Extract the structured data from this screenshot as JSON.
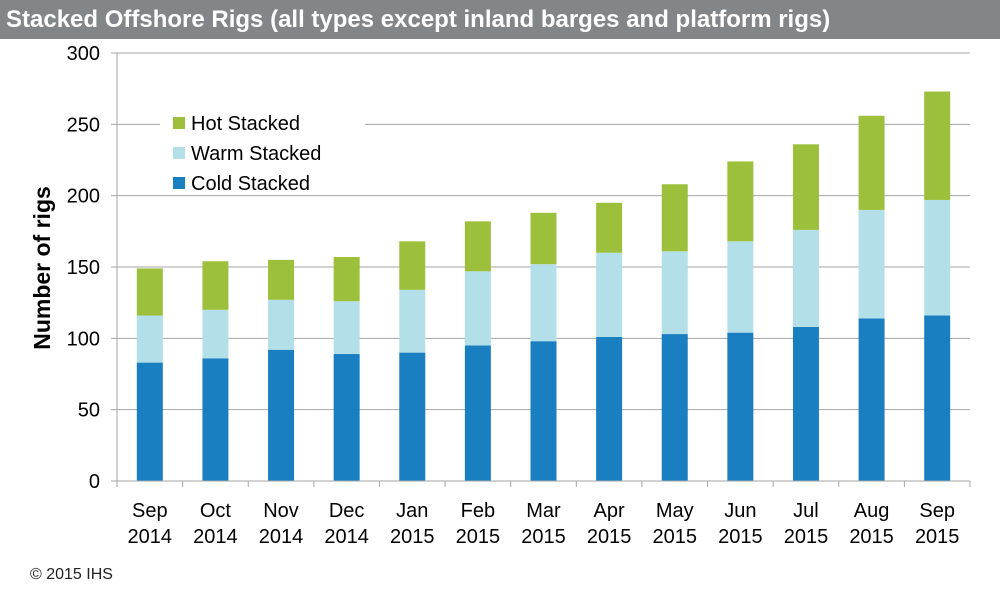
{
  "title": "Stacked Offshore Rigs (all types except inland barges and platform rigs)",
  "copyright": "© 2015 IHS",
  "colors": {
    "title_bar": "#828689",
    "hot": "#9cc03b",
    "warm": "#b3e0e8",
    "cold": "#1a7fc1",
    "grid": "#a6a6a6"
  },
  "chart_data": {
    "type": "bar",
    "stacked": true,
    "title": "Stacked Offshore Rigs (all types except inland barges and platform rigs)",
    "xlabel": "",
    "ylabel": "Number of rigs",
    "ylim": [
      0,
      300
    ],
    "yticks": [
      0,
      50,
      100,
      150,
      200,
      250,
      300
    ],
    "grid": true,
    "legend_position": "top-left",
    "categories": [
      [
        "Sep",
        "2014"
      ],
      [
        "Oct",
        "2014"
      ],
      [
        "Nov",
        "2014"
      ],
      [
        "Dec",
        "2014"
      ],
      [
        "Jan",
        "2015"
      ],
      [
        "Feb",
        "2015"
      ],
      [
        "Mar",
        "2015"
      ],
      [
        "Apr",
        "2015"
      ],
      [
        "May",
        "2015"
      ],
      [
        "Jun",
        "2015"
      ],
      [
        "Jul",
        "2015"
      ],
      [
        "Aug",
        "2015"
      ],
      [
        "Sep",
        "2015"
      ]
    ],
    "series": [
      {
        "name": "Cold Stacked",
        "key": "cold",
        "values": [
          83,
          86,
          92,
          89,
          90,
          95,
          98,
          101,
          103,
          104,
          108,
          114,
          116
        ]
      },
      {
        "name": "Warm Stacked",
        "key": "warm",
        "values": [
          33,
          34,
          35,
          37,
          44,
          52,
          54,
          59,
          58,
          64,
          68,
          76,
          81
        ]
      },
      {
        "name": "Hot Stacked",
        "key": "hot",
        "values": [
          33,
          34,
          28,
          31,
          34,
          35,
          36,
          35,
          47,
          56,
          60,
          66,
          76
        ]
      }
    ],
    "legend_order": [
      "Hot Stacked",
      "Warm Stacked",
      "Cold Stacked"
    ]
  }
}
